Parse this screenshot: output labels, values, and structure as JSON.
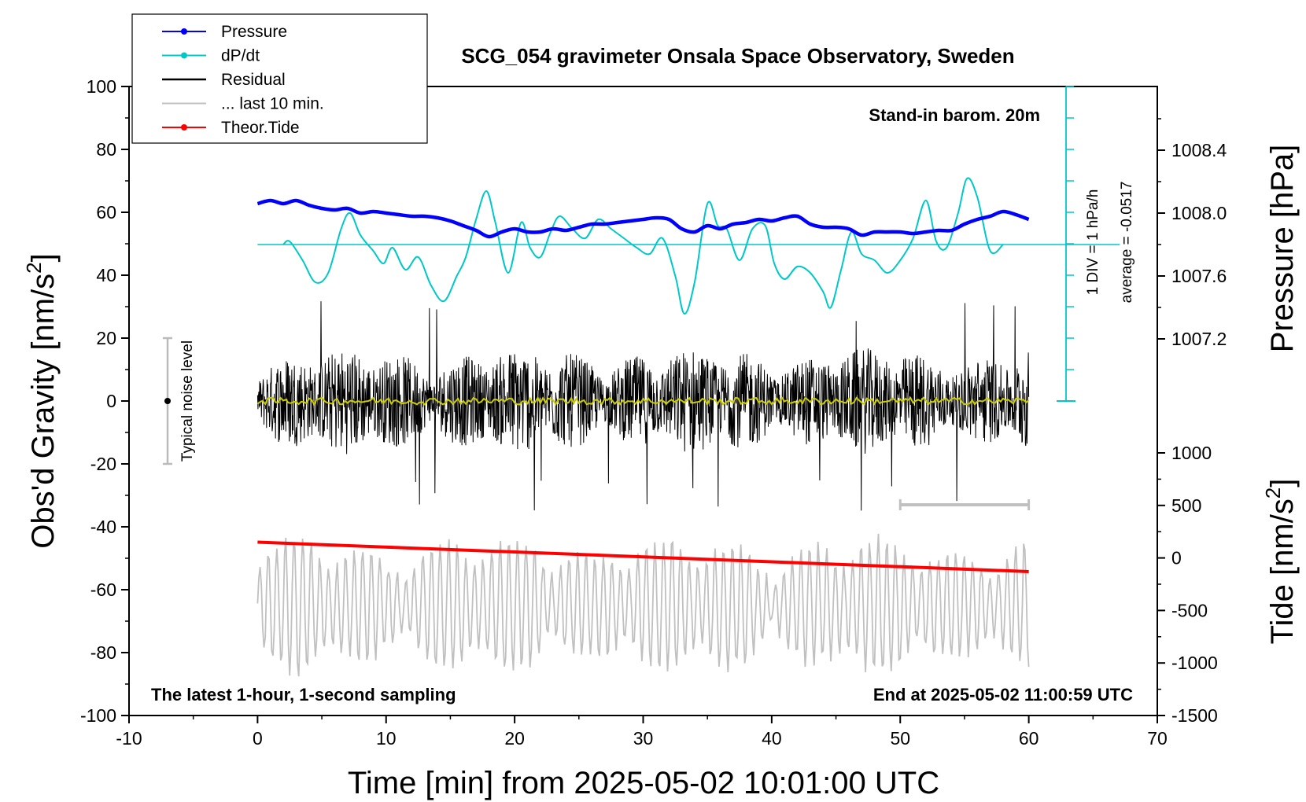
{
  "chart_data": {
    "type": "line",
    "title": "SCG_054 gravimeter Onsala Space Observatory, Sweden",
    "xlabel": "Time [min] from 2025-05-02 10:01:00 UTC",
    "ylabel_left": "Obs'd Gravity [nm/s",
    "ylabel_left_sup": "2",
    "ylabel_left_tail": "]",
    "ylabel_right_top": "Pressure [hPa]",
    "ylabel_right_bottom": "Tide [nm/s",
    "ylabel_right_bottom_sup": "2",
    "ylabel_right_bottom_tail": "]",
    "xlim": [
      -10,
      70
    ],
    "ylim": [
      -100,
      100
    ],
    "x_ticks": [
      "-10",
      "0",
      "10",
      "20",
      "30",
      "40",
      "50",
      "60",
      "70"
    ],
    "y_ticks": [
      "100",
      "80",
      "60",
      "40",
      "20",
      "0",
      "-20",
      "-40",
      "-60",
      "-80",
      "-100"
    ],
    "pressure_axis": {
      "ticks": [
        "1008.4",
        "1008.0",
        "1007.6",
        "1007.2"
      ],
      "values": [
        1008.4,
        1008.0,
        1007.6,
        1007.2
      ]
    },
    "tide_axis": {
      "ticks": [
        "1000",
        "500",
        "0",
        "-500",
        "-1000",
        "-1500"
      ],
      "values": [
        1000,
        500,
        0,
        -500,
        -1000,
        -1500
      ]
    },
    "grid": false,
    "legend_position": "top-left",
    "legend": [
      {
        "name": "Pressure",
        "color": "#0000ff",
        "marker": true
      },
      {
        "name": "dP/dt",
        "color": "#00c8c8",
        "marker": true
      },
      {
        "name": "Residual",
        "color": "#000000",
        "marker": false
      },
      {
        "name": "... last 10 min.",
        "color": "#c0c0c0",
        "marker": false
      },
      {
        "name": "Theor.Tide",
        "color": "#ff0000",
        "marker": true
      }
    ],
    "series": [
      {
        "name": "Pressure",
        "unit": "hPa",
        "color": "#0000ff",
        "x": [
          0,
          1,
          2,
          3,
          4,
          5,
          6,
          7,
          8,
          9,
          10,
          11,
          12,
          13,
          14,
          15,
          16,
          17,
          18,
          19,
          20,
          21,
          22,
          23,
          24,
          25,
          26,
          27,
          28,
          29,
          30,
          31,
          32,
          33,
          34,
          35,
          36,
          37,
          38,
          39,
          40,
          41,
          42,
          43,
          44,
          45,
          46,
          47,
          48,
          49,
          50,
          51,
          52,
          53,
          54,
          55,
          56,
          57,
          58,
          59,
          60
        ],
        "y": [
          1008.06,
          1008.08,
          1008.06,
          1008.08,
          1008.05,
          1008.03,
          1008.02,
          1008.03,
          1008.0,
          1008.01,
          1008.0,
          1007.99,
          1007.98,
          1007.98,
          1007.97,
          1007.95,
          1007.92,
          1007.89,
          1007.85,
          1007.88,
          1007.9,
          1007.88,
          1007.88,
          1007.9,
          1007.89,
          1007.91,
          1007.93,
          1007.93,
          1007.94,
          1007.95,
          1007.96,
          1007.97,
          1007.96,
          1007.9,
          1007.88,
          1007.92,
          1007.9,
          1007.93,
          1007.94,
          1007.96,
          1007.95,
          1007.97,
          1007.98,
          1007.93,
          1007.91,
          1007.91,
          1007.9,
          1007.86,
          1007.88,
          1007.88,
          1007.88,
          1007.87,
          1007.88,
          1007.89,
          1007.89,
          1007.93,
          1007.96,
          1007.98,
          1008.01,
          1007.99,
          1007.96
        ]
      },
      {
        "name": "dP/dt",
        "unit": "hPa/h",
        "color": "#00c8c8",
        "baseline": -0.0517,
        "x": [
          2,
          2.5,
          3.5,
          4.5,
          5.5,
          6.5,
          7.2,
          8,
          9,
          9.8,
          10.5,
          11.5,
          12.5,
          13.5,
          14.5,
          15.5,
          16.2,
          17,
          17.8,
          18.5,
          19.5,
          20.5,
          21.2,
          22,
          22.8,
          23.5,
          24.5,
          25.5,
          26.5,
          27.5,
          28.5,
          29.5,
          30.5,
          31.5,
          32.5,
          33.2,
          34,
          35,
          35.8,
          36.5,
          37.5,
          38.5,
          39.5,
          40.2,
          41,
          42,
          43,
          44,
          44.6,
          45.4,
          46.2,
          47,
          48,
          49,
          50,
          51,
          52,
          52.8,
          53.6,
          54.5,
          55.2,
          56,
          57,
          58
        ],
        "y": [
          0.0,
          0.1,
          -0.5,
          -1.2,
          -0.9,
          0.5,
          1.0,
          0.3,
          -0.2,
          -0.6,
          -0.1,
          -0.8,
          -0.4,
          -1.3,
          -1.8,
          -1.0,
          -0.4,
          0.8,
          1.7,
          0.7,
          -0.9,
          0.7,
          -0.1,
          -0.4,
          0.4,
          0.9,
          0.5,
          0.2,
          0.8,
          0.5,
          0.2,
          -0.1,
          -0.3,
          0.2,
          -1.0,
          -2.2,
          -1.2,
          1.3,
          0.6,
          0.5,
          -0.5,
          0.5,
          0.6,
          -0.6,
          -1.1,
          -0.7,
          -0.9,
          -1.5,
          -2.0,
          -0.8,
          0.4,
          -0.3,
          -0.5,
          -0.9,
          -0.5,
          0.2,
          1.4,
          0.1,
          -0.1,
          1.0,
          2.1,
          1.5,
          -0.2,
          0.0
        ]
      },
      {
        "name": "Residual",
        "unit": "nm/s2",
        "color": "#000000",
        "x_range": [
          0,
          60
        ],
        "envelope_min": -35,
        "envelope_max": 32,
        "typical_amplitude": 10
      },
      {
        "name": "Residual mean",
        "color": "#cccc00",
        "x_range": [
          0,
          60
        ],
        "level": 0
      },
      {
        "name": "... last 10 min.",
        "color": "#c0c0c0",
        "x_range": [
          0,
          60
        ],
        "level": -65,
        "amplitude_range": [
          -85,
          -37
        ]
      },
      {
        "name": "Theor.Tide",
        "unit": "nm/s2",
        "color": "#ff0000",
        "x": [
          0,
          60
        ],
        "y": [
          150,
          -130
        ]
      }
    ],
    "scale_bar": {
      "x": [
        50,
        60
      ],
      "y": -33,
      "color": "#c0c0c0"
    },
    "noise_indicator": {
      "label": "Typical noise level",
      "x": -7,
      "ymin": -20,
      "ymax": 20
    },
    "annotations": {
      "barometer": "Stand-in barom. 20m",
      "div_note": "1 DIV = 1 hPa/h",
      "average_note": "average = -0.0517",
      "footer_left": "The latest 1-hour, 1-second sampling",
      "footer_right": "End at 2025-05-02 11:00:59 UTC"
    }
  }
}
